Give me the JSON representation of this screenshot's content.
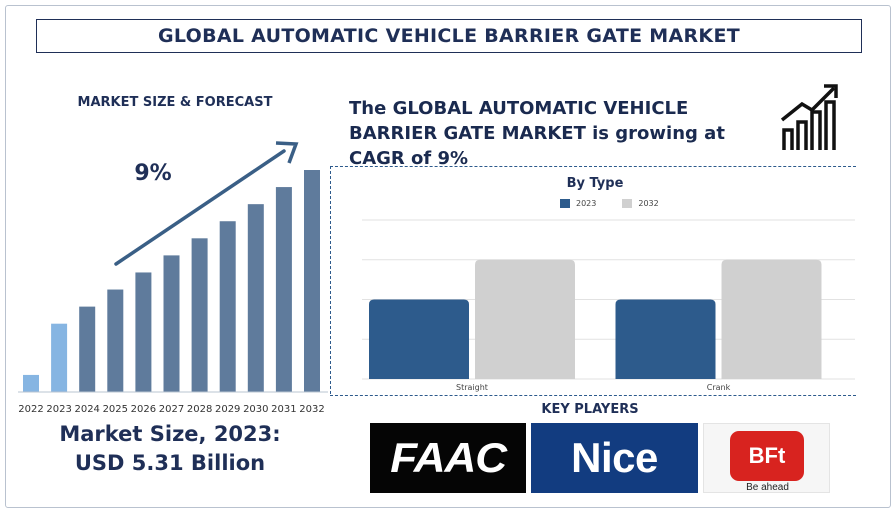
{
  "title": "GLOBAL AUTOMATIC VEHICLE BARRIER GATE MARKET",
  "left_panel": {
    "heading": "MARKET SIZE & FORECAST",
    "cagr_label": "9%",
    "market_size_line1": "Market Size, 2023:",
    "market_size_line2": "USD 5.31 Billion"
  },
  "right_panel": {
    "cagr_text": "The GLOBAL AUTOMATIC VEHICLE BARRIER GATE MARKET is growing at CAGR of 9%",
    "trend_icon": "growth-chart-icon"
  },
  "key_players": {
    "heading": "KEY PLAYERS",
    "logos": [
      {
        "name": "FAAC",
        "text": "FAAC",
        "color": "#050505"
      },
      {
        "name": "Nice",
        "text": "Nice",
        "color": "#123c80"
      },
      {
        "name": "BFT",
        "text": "BFt",
        "tagline": "Be ahead",
        "color": "#d8231f"
      }
    ]
  },
  "chart_data": [
    {
      "type": "bar",
      "title": "",
      "categories": [
        "2022",
        "2023",
        "2024",
        "2025",
        "2026",
        "2027",
        "2028",
        "2029",
        "2030",
        "2031",
        "2032"
      ],
      "values": [
        1,
        4,
        5,
        6,
        7,
        8,
        9,
        10,
        11,
        12,
        13
      ],
      "value_note_colors": {
        "2022": "#86b5e2",
        "2023": "#86b5e2",
        "other": "#5f7b9c"
      },
      "ylim": [
        0,
        13
      ],
      "grid": false,
      "annotation": "9%"
    },
    {
      "type": "bar",
      "title": "By Type",
      "categories": [
        "Straight",
        "Crank"
      ],
      "series": [
        {
          "name": "2023",
          "values": [
            2,
            2
          ],
          "color": "#2d5b8c"
        },
        {
          "name": "2032",
          "values": [
            3,
            3
          ],
          "color": "#d0d0d0"
        }
      ],
      "ylim": [
        0,
        4
      ],
      "grid": true,
      "legend": "top-center"
    }
  ]
}
